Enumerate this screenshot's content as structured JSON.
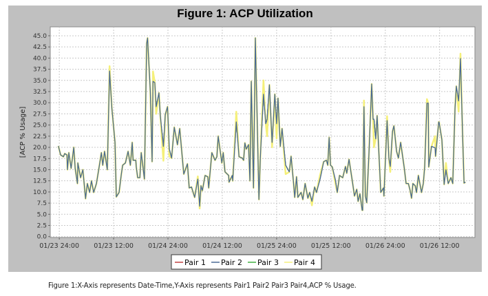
{
  "chart_data": {
    "type": "line",
    "title": "Figure 1: ACP Utilization",
    "xlabel": "",
    "ylabel": "[ACP % Usage]",
    "x_unit": "hours from first tick",
    "xlim": [
      -2.0,
      91.8
    ],
    "ylim": [
      -0.2,
      47.0
    ],
    "grid": true,
    "legend_position": "bottom-center",
    "x_ticks": [
      {
        "x": 0,
        "label": "01/23 24:00"
      },
      {
        "x": 12,
        "label": "01/23 12:00"
      },
      {
        "x": 24,
        "label": "01/24 24:00"
      },
      {
        "x": 36,
        "label": "01/24 12:00"
      },
      {
        "x": 48,
        "label": "01/25 24:00"
      },
      {
        "x": 60,
        "label": "01/25 12:00"
      },
      {
        "x": 72,
        "label": "01/26 24:00"
      },
      {
        "x": 84,
        "label": "01/26 12:00"
      }
    ],
    "y_ticks": [
      "0.0",
      "2.5",
      "5.0",
      "7.5",
      "10.0",
      "12.5",
      "15.0",
      "17.5",
      "20.0",
      "22.5",
      "25.0",
      "27.5",
      "30.0",
      "32.5",
      "35.0",
      "37.5",
      "40.0",
      "42.5",
      "45.0"
    ],
    "series": [
      {
        "name": "Pair 1",
        "color": "#c04040",
        "same_as": "Pair 2"
      },
      {
        "name": "Pair 3",
        "color": "#40b040",
        "same_as": "Pair 2"
      },
      {
        "name": "Pair 4",
        "color": "#f5f07a",
        "same_as": "Pair 2",
        "overrides": [
          [
            11.1,
            38.2
          ],
          [
            20.7,
            37.0
          ],
          [
            21.4,
            27.5
          ],
          [
            23.0,
            17.0
          ],
          [
            24.3,
            18.0
          ],
          [
            30.6,
            13.5
          ],
          [
            31.0,
            6.3
          ],
          [
            39.1,
            28.0
          ],
          [
            45.1,
            35.0
          ],
          [
            45.9,
            22.5
          ],
          [
            47.0,
            20.0
          ],
          [
            48.0,
            22.0
          ],
          [
            50.0,
            14.0
          ],
          [
            55.8,
            7.0
          ],
          [
            57.6,
            13.8
          ],
          [
            61.0,
            11.8
          ],
          [
            67.3,
            30.5
          ],
          [
            69.5,
            20.0
          ],
          [
            72.4,
            27.0
          ],
          [
            73.1,
            14.5
          ],
          [
            81.2,
            30.8
          ],
          [
            83.0,
            22.5
          ],
          [
            85.4,
            16.5
          ],
          [
            88.2,
            28.0
          ],
          [
            88.6,
            41.0
          ]
        ]
      },
      {
        "name": "Pair 2",
        "color": "#4a6a96",
        "points": [
          [
            -0.2,
            20.3
          ],
          [
            0.3,
            18.3
          ],
          [
            0.9,
            17.9
          ],
          [
            1.2,
            18.6
          ],
          [
            1.7,
            18.3
          ],
          [
            1.8,
            15
          ],
          [
            2.1,
            18.8
          ],
          [
            2.6,
            15.3
          ],
          [
            3.2,
            20
          ],
          [
            3.5,
            15.3
          ],
          [
            4.0,
            11.9
          ],
          [
            4.1,
            16.5
          ],
          [
            4.7,
            13.2
          ],
          [
            5.2,
            15
          ],
          [
            5.8,
            8.5
          ],
          [
            6.2,
            11.9
          ],
          [
            6.7,
            9.9
          ],
          [
            7.1,
            12.5
          ],
          [
            7.6,
            9.9
          ],
          [
            8.2,
            11.9
          ],
          [
            8.7,
            15
          ],
          [
            9.3,
            18.8
          ],
          [
            9.6,
            16
          ],
          [
            10.0,
            19.1
          ],
          [
            10.6,
            15
          ],
          [
            11.1,
            37.1
          ],
          [
            11.6,
            28.8
          ],
          [
            12.3,
            21.1
          ],
          [
            12.6,
            8.9
          ],
          [
            13.2,
            9.9
          ],
          [
            13.7,
            14
          ],
          [
            14.0,
            16
          ],
          [
            14.6,
            16.5
          ],
          [
            15.2,
            19.1
          ],
          [
            15.7,
            16
          ],
          [
            16.1,
            21.1
          ],
          [
            16.3,
            17.1
          ],
          [
            16.9,
            17.1
          ],
          [
            17.0,
            15.6
          ],
          [
            17.3,
            13.2
          ],
          [
            17.8,
            13.2
          ],
          [
            18.1,
            18.8
          ],
          [
            18.8,
            12.9
          ],
          [
            19.3,
            43.3
          ],
          [
            19.5,
            44.5
          ],
          [
            20.1,
            32.5
          ],
          [
            20.5,
            16.8
          ],
          [
            20.7,
            34.8
          ],
          [
            21.1,
            34.5
          ],
          [
            21.4,
            29.1
          ],
          [
            22.0,
            32.2
          ],
          [
            22.3,
            27.3
          ],
          [
            23.0,
            20.2
          ],
          [
            23.4,
            27.3
          ],
          [
            23.9,
            29.1
          ],
          [
            24.3,
            19.6
          ],
          [
            24.8,
            17.6
          ],
          [
            25.4,
            24.5
          ],
          [
            26.1,
            20.6
          ],
          [
            26.6,
            24.2
          ],
          [
            27.5,
            14
          ],
          [
            28.3,
            16.3
          ],
          [
            28.7,
            10.9
          ],
          [
            29.2,
            11.1
          ],
          [
            29.9,
            8.8
          ],
          [
            30.6,
            12.9
          ],
          [
            31.0,
            6.8
          ],
          [
            31.3,
            11.4
          ],
          [
            31.6,
            10.3
          ],
          [
            32.2,
            13.7
          ],
          [
            32.8,
            13.4
          ],
          [
            33.0,
            10.9
          ],
          [
            33.7,
            18.8
          ],
          [
            34.4,
            17.1
          ],
          [
            34.8,
            17.9
          ],
          [
            35.1,
            22.5
          ],
          [
            35.4,
            20.2
          ],
          [
            35.9,
            16.5
          ],
          [
            36.2,
            18.8
          ],
          [
            36.6,
            14.5
          ],
          [
            37.4,
            13.7
          ],
          [
            37.5,
            12.2
          ],
          [
            38.2,
            13.7
          ],
          [
            38.3,
            12.5
          ],
          [
            39.1,
            25.7
          ],
          [
            39.7,
            17.9
          ],
          [
            40.4,
            17.6
          ],
          [
            40.7,
            17.1
          ],
          [
            41.0,
            21
          ],
          [
            41.3,
            19.6
          ],
          [
            41.8,
            20.6
          ],
          [
            42.1,
            12.5
          ],
          [
            42.4,
            34.8
          ],
          [
            42.9,
            10.9
          ],
          [
            43.3,
            44.5
          ],
          [
            43.6,
            31.4
          ],
          [
            44.1,
            8.3
          ],
          [
            44.4,
            17.6
          ],
          [
            45.1,
            31.9
          ],
          [
            45.6,
            25.3
          ],
          [
            45.9,
            26.3
          ],
          [
            46.4,
            34
          ],
          [
            47.0,
            21.1
          ],
          [
            47.6,
            31.9
          ],
          [
            48.0,
            25.3
          ],
          [
            48.3,
            31
          ],
          [
            48.8,
            20.2
          ],
          [
            49.2,
            24.2
          ],
          [
            50.0,
            16
          ],
          [
            50.8,
            14.5
          ],
          [
            51.2,
            18
          ],
          [
            51.7,
            12.5
          ],
          [
            52.0,
            8.8
          ],
          [
            52.4,
            13.4
          ],
          [
            52.7,
            8.8
          ],
          [
            53.4,
            9.9
          ],
          [
            53.8,
            8.3
          ],
          [
            54.3,
            11.9
          ],
          [
            54.9,
            8.6
          ],
          [
            55.3,
            9.9
          ],
          [
            55.8,
            7.9
          ],
          [
            56.4,
            11.1
          ],
          [
            56.8,
            9.9
          ],
          [
            57.6,
            12.9
          ],
          [
            58.4,
            16.8
          ],
          [
            59.0,
            17.1
          ],
          [
            59.3,
            16
          ],
          [
            59.6,
            22.2
          ],
          [
            59.9,
            16
          ],
          [
            60.3,
            15.6
          ],
          [
            61.0,
            12.6
          ],
          [
            61.4,
            9.9
          ],
          [
            61.9,
            13.7
          ],
          [
            62.6,
            13.2
          ],
          [
            63.2,
            15.7
          ],
          [
            63.5,
            14.2
          ],
          [
            64.0,
            17.3
          ],
          [
            64.8,
            11.9
          ],
          [
            65.2,
            9.1
          ],
          [
            65.7,
            10.6
          ],
          [
            66.0,
            7.9
          ],
          [
            66.4,
            9.6
          ],
          [
            66.9,
            5.9
          ],
          [
            67.0,
            5.9
          ],
          [
            67.3,
            29.1
          ],
          [
            67.6,
            9.1
          ],
          [
            67.9,
            7.6
          ],
          [
            68.4,
            18.8
          ],
          [
            69.0,
            34.2
          ],
          [
            69.3,
            26.3
          ],
          [
            69.5,
            26.3
          ],
          [
            69.9,
            21.9
          ],
          [
            70.2,
            27.1
          ],
          [
            71.0,
            9.9
          ],
          [
            71.6,
            10.9
          ],
          [
            71.7,
            9.1
          ],
          [
            72.4,
            26
          ],
          [
            72.8,
            17.6
          ],
          [
            73.1,
            15.7
          ],
          [
            73.6,
            23.6
          ],
          [
            73.9,
            24.8
          ],
          [
            74.5,
            19.1
          ],
          [
            74.9,
            17.6
          ],
          [
            75.4,
            21.1
          ],
          [
            76.2,
            15.3
          ],
          [
            76.6,
            11.9
          ],
          [
            77.1,
            11.9
          ],
          [
            77.5,
            10.3
          ],
          [
            77.8,
            8.6
          ],
          [
            78.1,
            11.9
          ],
          [
            78.6,
            11.4
          ],
          [
            78.9,
            9.9
          ],
          [
            79.3,
            13.7
          ],
          [
            80.0,
            9.9
          ],
          [
            80.4,
            11.9
          ],
          [
            80.7,
            15.6
          ],
          [
            81.2,
            29.9
          ],
          [
            81.5,
            29.9
          ],
          [
            81.6,
            15.6
          ],
          [
            82.2,
            20.2
          ],
          [
            83.0,
            19.9
          ],
          [
            83.1,
            18
          ],
          [
            83.8,
            25.7
          ],
          [
            83.9,
            25.6
          ],
          [
            84.5,
            21.7
          ],
          [
            85.0,
            11.7
          ],
          [
            85.4,
            15
          ],
          [
            85.9,
            11.9
          ],
          [
            86.5,
            13.2
          ],
          [
            86.9,
            11.9
          ],
          [
            87.4,
            28.8
          ],
          [
            87.7,
            33.7
          ],
          [
            88.2,
            30.4
          ],
          [
            88.6,
            39.9
          ],
          [
            89.1,
            22.2
          ],
          [
            89.4,
            12
          ],
          [
            89.7,
            12.2
          ]
        ]
      }
    ],
    "legend": [
      "Pair 1",
      "Pair 2",
      "Pair 3",
      "Pair 4"
    ]
  },
  "caption": "Figure 1:X-Axis represents Date-Time,Y-Axis represents Pair1 Pair2 Pair3 Pair4,ACP % Usage."
}
